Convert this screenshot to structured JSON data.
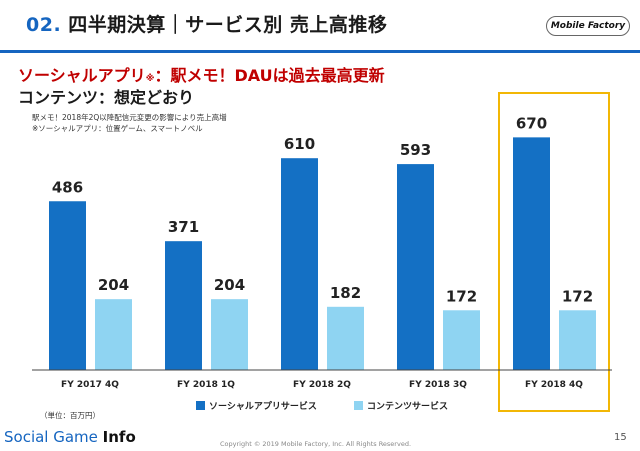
{
  "header": {
    "number": "02.",
    "title": "四半期決算｜サービス別 売上高推移",
    "logo": "Mobile Factory"
  },
  "headline": {
    "line1_main": "ソーシャルアプリ",
    "line1_sup": "※",
    "line1_rest": "：駅メモ！DAUは過去最高更新",
    "line2": "コンテンツ：想定どおり"
  },
  "notes": [
    "駅メモ！2018年2Q以降配信元変更の影響により売上高増",
    "※ソーシャルアプリ：位置ゲーム、スマートノベル"
  ],
  "unit_note": "（単位：百万円）",
  "footer": {
    "brand_light": "Social Game ",
    "brand_bold": "Info",
    "copyright": "Copyright © 2019 Mobile Factory, Inc. All Rights Reserved.",
    "page": "15"
  },
  "colors": {
    "social": "#1470c4",
    "content": "#8fd4f2",
    "highlight": "#f2b705",
    "accent": "#1565c0",
    "headline_red": "#c00000"
  },
  "chart_data": {
    "type": "bar",
    "categories": [
      "FY 2017 4Q",
      "FY 2018 1Q",
      "FY 2018 2Q",
      "FY 2018 3Q",
      "FY 2018 4Q"
    ],
    "series": [
      {
        "name": "ソーシャルアプリサービス",
        "values": [
          486,
          371,
          610,
          593,
          670
        ]
      },
      {
        "name": "コンテンツサービス",
        "values": [
          204,
          204,
          182,
          172,
          172
        ]
      }
    ],
    "ylim": [
      0,
      720
    ],
    "grid": false,
    "legend": "bottom",
    "highlighted_category": "FY 2018 4Q"
  }
}
